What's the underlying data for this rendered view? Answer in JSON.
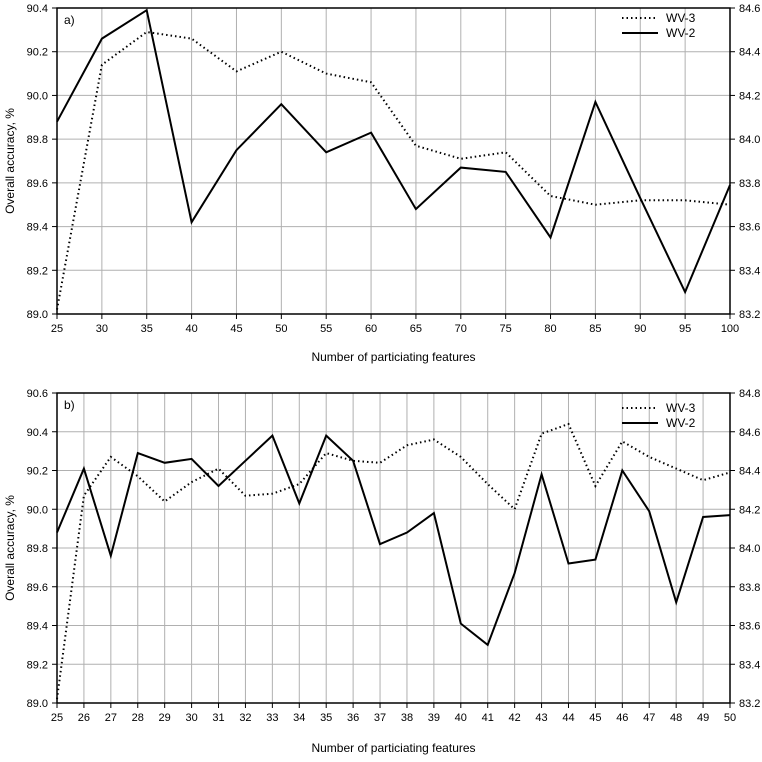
{
  "page": {
    "background": "#ffffff"
  },
  "colors": {
    "series_line": "#000000",
    "grid": "#b0b0b0",
    "border": "#000000",
    "text": "#000000"
  },
  "chart_data": [
    {
      "type": "line",
      "panel_label": "a)",
      "xlabel": "Number of particiating features",
      "ylabel_left": "Overall accuracy, %",
      "legend_position": "top-right-inside",
      "grid": true,
      "x": [
        25,
        30,
        35,
        40,
        45,
        50,
        55,
        60,
        65,
        70,
        75,
        80,
        85,
        90,
        95,
        100
      ],
      "ylim_left": [
        89.0,
        90.4
      ],
      "ylim_right": [
        83.2,
        84.6
      ],
      "ytick_step": 0.2,
      "series": [
        {
          "name": "WV-3",
          "style": "dotted",
          "values": [
            89.02,
            90.14,
            90.29,
            90.26,
            90.11,
            90.2,
            90.1,
            90.06,
            89.77,
            89.71,
            89.74,
            89.54,
            89.5,
            89.52,
            89.52,
            89.5
          ]
        },
        {
          "name": "WV-2",
          "style": "solid",
          "values": [
            89.88,
            90.26,
            90.39,
            89.42,
            89.75,
            89.96,
            89.74,
            89.83,
            89.48,
            89.67,
            89.65,
            89.35,
            89.97,
            89.53,
            89.1,
            89.59
          ]
        }
      ]
    },
    {
      "type": "line",
      "panel_label": "b)",
      "xlabel": "Number of particiating features",
      "ylabel_left": "Overall accuracy, %",
      "legend_position": "top-right-inside",
      "grid": true,
      "x": [
        25,
        26,
        27,
        28,
        29,
        30,
        31,
        32,
        33,
        34,
        35,
        36,
        37,
        38,
        39,
        40,
        41,
        42,
        43,
        44,
        45,
        46,
        47,
        48,
        49,
        50
      ],
      "ylim_left": [
        89.0,
        90.6
      ],
      "ylim_right": [
        83.2,
        84.8
      ],
      "ytick_step": 0.2,
      "series": [
        {
          "name": "WV-3",
          "style": "dotted",
          "values": [
            89.02,
            90.07,
            90.27,
            90.17,
            90.04,
            90.14,
            90.21,
            90.07,
            90.08,
            90.13,
            90.29,
            90.25,
            90.24,
            90.33,
            90.36,
            90.27,
            90.13,
            90.0,
            90.39,
            90.44,
            90.12,
            90.35,
            90.27,
            90.21,
            90.15,
            90.19
          ]
        },
        {
          "name": "WV-2",
          "style": "solid",
          "values": [
            89.88,
            90.21,
            89.76,
            90.29,
            90.24,
            90.26,
            90.12,
            90.25,
            90.38,
            90.03,
            90.38,
            90.25,
            89.82,
            89.88,
            89.98,
            89.41,
            89.3,
            89.67,
            90.18,
            89.72,
            89.74,
            90.2,
            89.99,
            89.52,
            89.96,
            89.97
          ]
        }
      ]
    }
  ]
}
